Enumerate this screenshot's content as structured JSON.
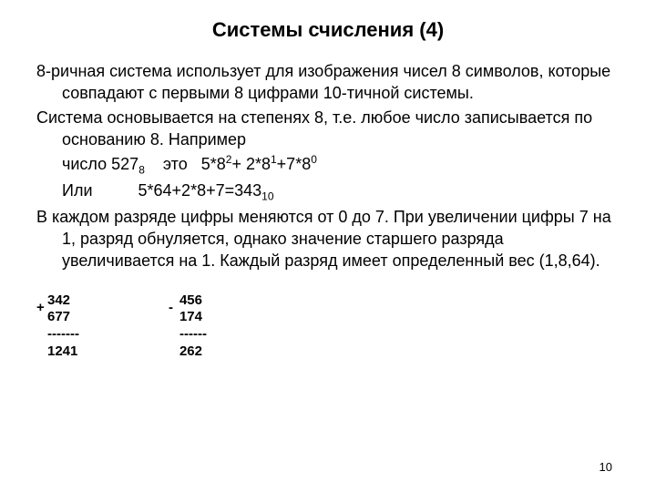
{
  "title": "Системы счисления (4)",
  "p1": "8-ричная система использует для изображения чисел 8 символов, которые совпадают с первыми 8 цифрами 10-тичной системы.",
  "p2": "Система основывается на степенях 8, т.е. любое число записывается по основанию 8. Например",
  "p3_pre": "число 527",
  "p3_sub": "8",
  "p3_mid": "    это   5*8",
  "p3_e1": "2",
  "p3_mid2": "+ 2*8",
  "p3_e2": "1",
  "p3_mid3": "+7*8",
  "p3_e3": "0",
  "p4_pre": "Или          5*64+2*8+7=343",
  "p4_sub": "10",
  "p5": "В каждом разряде цифры меняются от 0 до 7. При увеличении цифры 7 на 1, разряд обнуляется, однако значение старшего разряда увеличивается на 1. Каждый разряд имеет определенный вес (1,8,64).",
  "arith": {
    "add": {
      "sign": "+",
      "a": "342",
      "b": "677",
      "rule": "-------",
      "r": "1241"
    },
    "sub": {
      "sign": "-",
      "a": "456",
      "b": "174",
      "rule": "------",
      "r": "262"
    }
  },
  "page_number": "10"
}
